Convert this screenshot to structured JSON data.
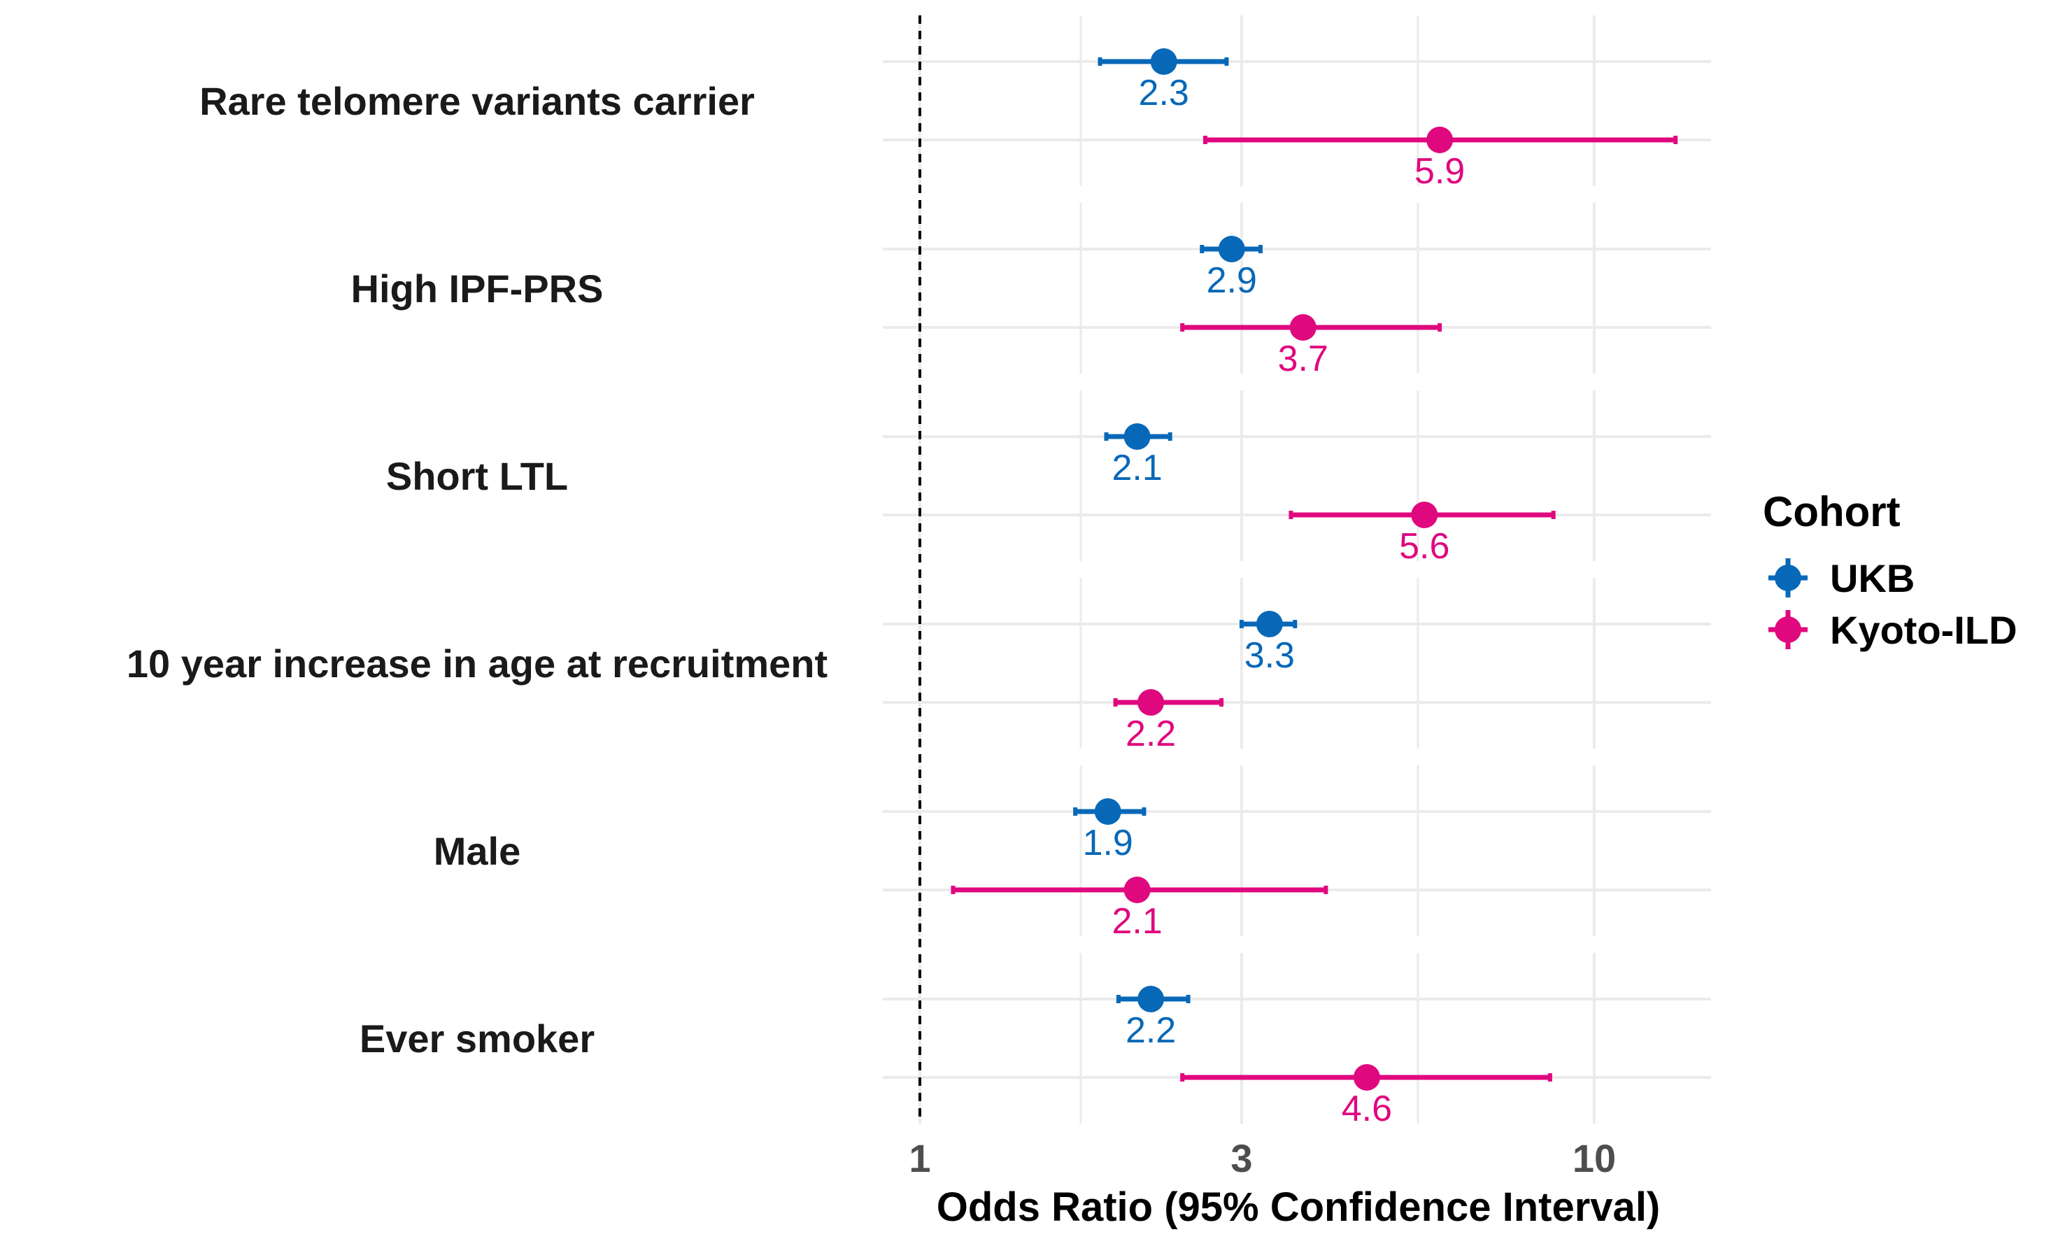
{
  "chart_data": {
    "type": "scatter",
    "subtype": "forest-plot",
    "xlabel": "Odds Ratio (95% Confidence Interval)",
    "x_scale": "log",
    "xlim": [
      0.82,
      16
    ],
    "x_ticks": [
      1,
      3,
      10
    ],
    "x_tick_labels": [
      "1",
      "3",
      "10"
    ],
    "reference_line": 1,
    "grid": true,
    "legend": {
      "title": "Cohort",
      "position": "right"
    },
    "categories": [
      "Rare telomere variants carrier",
      "High IPF-PRS",
      "Short LTL",
      "10 year increase in age at recruitment",
      "Male",
      "Ever smoker"
    ],
    "series": [
      {
        "name": "UKB",
        "color": "#0868b8",
        "or": [
          2.3,
          2.9,
          2.1,
          3.3,
          1.9,
          2.2
        ],
        "ci_low": [
          1.85,
          2.62,
          1.89,
          3.0,
          1.7,
          1.97
        ],
        "ci_high": [
          2.85,
          3.2,
          2.35,
          3.6,
          2.15,
          2.5
        ],
        "labels": [
          "2.3",
          "2.9",
          "2.1",
          "3.3",
          "1.9",
          "2.2"
        ]
      },
      {
        "name": "Kyoto-ILD",
        "color": "#e0087e",
        "or": [
          5.9,
          3.7,
          5.6,
          2.2,
          2.1,
          4.6
        ],
        "ci_low": [
          2.65,
          2.45,
          3.55,
          1.95,
          1.12,
          2.45
        ],
        "ci_high": [
          13.2,
          5.9,
          8.7,
          2.8,
          4.0,
          8.6
        ],
        "labels": [
          "5.9",
          "3.7",
          "5.6",
          "2.2",
          "2.1",
          "4.6"
        ]
      }
    ]
  }
}
